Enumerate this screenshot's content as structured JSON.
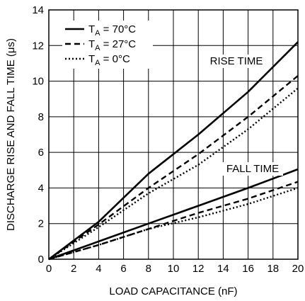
{
  "chart_data": {
    "type": "line",
    "title": "",
    "xlabel": "LOAD CAPACITANCE (nF)",
    "ylabel": "DISCHARGE RISE AND FALL TIME (μs)",
    "xlim": [
      0,
      20
    ],
    "ylim": [
      0,
      14
    ],
    "x_ticks": [
      "0",
      "2",
      "4",
      "6",
      "8",
      "10",
      "12",
      "14",
      "16",
      "18",
      "20"
    ],
    "y_ticks": [
      "0",
      "2",
      "4",
      "6",
      "8",
      "10",
      "12",
      "14"
    ],
    "grid": true,
    "legend_position": "top-left",
    "legend": [
      {
        "prefix": "T",
        "sub": "A",
        "suffix": " = 70°C",
        "style": "solid"
      },
      {
        "prefix": "T",
        "sub": "A",
        "suffix": " = 27°C",
        "style": "dashed"
      },
      {
        "prefix": "T",
        "sub": "A",
        "suffix": " = 0°C",
        "style": "dotted"
      }
    ],
    "annotations": {
      "rise": "RISE TIME",
      "fall": "FALL TIME"
    },
    "series": [
      {
        "group": "rise",
        "temp": "70°C",
        "style": "solid",
        "x": [
          0,
          4,
          8,
          12,
          16,
          20
        ],
        "y": [
          0,
          2.1,
          4.8,
          7.0,
          9.4,
          12.2
        ]
      },
      {
        "group": "rise",
        "temp": "27°C",
        "style": "dashed",
        "x": [
          0,
          4,
          8,
          12,
          16,
          20
        ],
        "y": [
          0,
          1.95,
          4.0,
          5.9,
          8.0,
          10.3
        ]
      },
      {
        "group": "rise",
        "temp": "0°C",
        "style": "dotted",
        "x": [
          0,
          4,
          8,
          12,
          16,
          20
        ],
        "y": [
          0,
          1.8,
          3.7,
          5.3,
          7.3,
          9.6
        ]
      },
      {
        "group": "fall",
        "temp": "70°C",
        "style": "solid",
        "x": [
          0,
          4,
          8,
          12,
          16,
          20
        ],
        "y": [
          0,
          1.0,
          2.0,
          3.0,
          4.0,
          5.05
        ]
      },
      {
        "group": "fall",
        "temp": "27°C",
        "style": "dashed",
        "x": [
          0,
          4,
          8,
          12,
          16,
          20
        ],
        "y": [
          0,
          0.8,
          1.7,
          2.6,
          3.4,
          4.35
        ]
      },
      {
        "group": "fall",
        "temp": "0°C",
        "style": "dotted",
        "x": [
          0,
          4,
          8,
          12,
          16,
          20
        ],
        "y": [
          0,
          0.8,
          1.7,
          2.35,
          3.1,
          4.0
        ]
      }
    ]
  }
}
